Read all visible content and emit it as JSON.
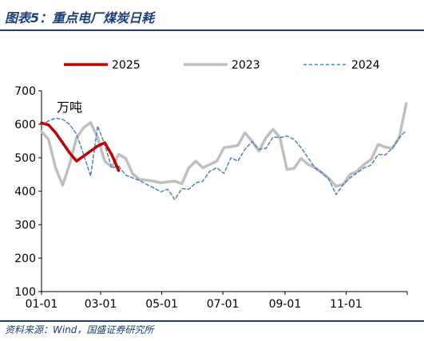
{
  "header": {
    "title": "图表5：重点电厂煤炭日耗"
  },
  "footer": {
    "source": "资料来源：Wind，国盛证券研究所"
  },
  "colors": {
    "s2025": "#c00000",
    "s2023": "#bfbfbf",
    "s2024": "#4f81bd",
    "title": "#1a3f7a"
  },
  "chart_data": {
    "type": "line",
    "unit_label": "万吨",
    "ylim": [
      100,
      700
    ],
    "yticks": [
      100,
      200,
      300,
      400,
      500,
      600,
      700
    ],
    "xlim_day": [
      1,
      366
    ],
    "xticks": [
      {
        "label": "01-01",
        "day": 1
      },
      {
        "label": "03-01",
        "day": 60
      },
      {
        "label": "05-01",
        "day": 121
      },
      {
        "label": "07-01",
        "day": 182
      },
      {
        "label": "09-01",
        "day": 244
      },
      {
        "label": "11-01",
        "day": 305
      }
    ],
    "legend": "top",
    "series": [
      {
        "name": "2025",
        "style": "solid-thick",
        "color": "#c00000",
        "points": [
          [
            1,
            604
          ],
          [
            8,
            598
          ],
          [
            15,
            575
          ],
          [
            22,
            545
          ],
          [
            29,
            515
          ],
          [
            36,
            490
          ],
          [
            43,
            505
          ],
          [
            50,
            520
          ],
          [
            57,
            535
          ],
          [
            64,
            545
          ],
          [
            71,
            510
          ],
          [
            78,
            462
          ]
        ]
      },
      {
        "name": "2023",
        "style": "solid",
        "color": "#bfbfbf",
        "points": [
          [
            1,
            578
          ],
          [
            8,
            555
          ],
          [
            15,
            470
          ],
          [
            22,
            418
          ],
          [
            29,
            480
          ],
          [
            36,
            560
          ],
          [
            43,
            590
          ],
          [
            50,
            605
          ],
          [
            57,
            560
          ],
          [
            64,
            490
          ],
          [
            71,
            472
          ],
          [
            78,
            510
          ],
          [
            85,
            498
          ],
          [
            92,
            452
          ],
          [
            99,
            435
          ],
          [
            106,
            433
          ],
          [
            113,
            430
          ],
          [
            120,
            425
          ],
          [
            127,
            428
          ],
          [
            134,
            430
          ],
          [
            141,
            422
          ],
          [
            148,
            470
          ],
          [
            155,
            490
          ],
          [
            162,
            470
          ],
          [
            169,
            480
          ],
          [
            176,
            490
          ],
          [
            183,
            530
          ],
          [
            190,
            533
          ],
          [
            197,
            537
          ],
          [
            204,
            575
          ],
          [
            211,
            550
          ],
          [
            218,
            520
          ],
          [
            225,
            560
          ],
          [
            232,
            585
          ],
          [
            239,
            560
          ],
          [
            246,
            465
          ],
          [
            253,
            468
          ],
          [
            260,
            498
          ],
          [
            267,
            480
          ],
          [
            274,
            470
          ],
          [
            281,
            455
          ],
          [
            288,
            438
          ],
          [
            295,
            415
          ],
          [
            302,
            420
          ],
          [
            309,
            450
          ],
          [
            316,
            460
          ],
          [
            323,
            480
          ],
          [
            330,
            495
          ],
          [
            337,
            540
          ],
          [
            344,
            532
          ],
          [
            351,
            528
          ],
          [
            358,
            560
          ],
          [
            365,
            662
          ]
        ]
      },
      {
        "name": "2024",
        "style": "dashed",
        "color": "#4f81bd",
        "points": [
          [
            1,
            598
          ],
          [
            8,
            610
          ],
          [
            15,
            618
          ],
          [
            22,
            615
          ],
          [
            29,
            600
          ],
          [
            36,
            570
          ],
          [
            43,
            510
          ],
          [
            50,
            445
          ],
          [
            57,
            595
          ],
          [
            64,
            540
          ],
          [
            71,
            470
          ],
          [
            78,
            475
          ],
          [
            85,
            448
          ],
          [
            92,
            440
          ],
          [
            99,
            432
          ],
          [
            106,
            420
          ],
          [
            113,
            410
          ],
          [
            120,
            398
          ],
          [
            127,
            406
          ],
          [
            134,
            375
          ],
          [
            141,
            408
          ],
          [
            148,
            406
          ],
          [
            155,
            425
          ],
          [
            162,
            430
          ],
          [
            169,
            460
          ],
          [
            176,
            470
          ],
          [
            183,
            453
          ],
          [
            190,
            500
          ],
          [
            197,
            490
          ],
          [
            204,
            525
          ],
          [
            211,
            548
          ],
          [
            218,
            525
          ],
          [
            225,
            528
          ],
          [
            232,
            562
          ],
          [
            239,
            560
          ],
          [
            246,
            565
          ],
          [
            253,
            555
          ],
          [
            260,
            530
          ],
          [
            267,
            500
          ],
          [
            274,
            470
          ],
          [
            281,
            455
          ],
          [
            288,
            435
          ],
          [
            295,
            390
          ],
          [
            302,
            420
          ],
          [
            309,
            440
          ],
          [
            316,
            455
          ],
          [
            323,
            470
          ],
          [
            330,
            478
          ],
          [
            337,
            510
          ],
          [
            344,
            508
          ],
          [
            351,
            528
          ],
          [
            358,
            560
          ],
          [
            365,
            582
          ]
        ]
      }
    ]
  }
}
